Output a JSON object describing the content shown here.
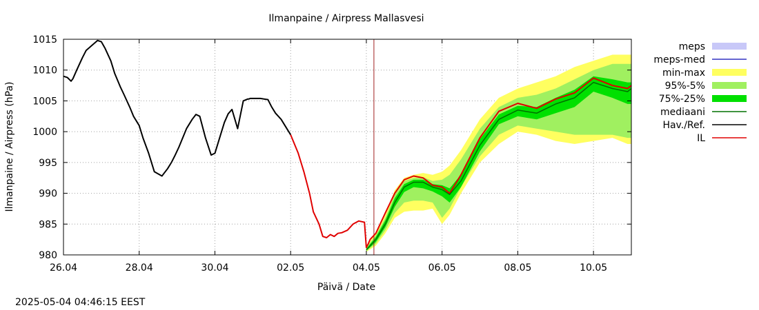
{
  "timestamp": "2025-05-04 04:46:15 EEST",
  "chart_data": {
    "type": "line",
    "title": "Ilmanpaine / Airpress Mallasvesi",
    "xlabel": "Päivä / Date",
    "ylabel": "Ilmanpaine / Airpress (hPa)",
    "x_unit": "days since 26.04 00:00",
    "xlim": [
      0,
      15
    ],
    "ylim": [
      980,
      1015
    ],
    "yticks": [
      980,
      985,
      990,
      995,
      1000,
      1005,
      1010,
      1015
    ],
    "xticks": [
      {
        "x": 0,
        "label": "26.04"
      },
      {
        "x": 2,
        "label": "28.04"
      },
      {
        "x": 4,
        "label": "30.04"
      },
      {
        "x": 6,
        "label": "02.05"
      },
      {
        "x": 8,
        "label": "04.05"
      },
      {
        "x": 10,
        "label": "06.05"
      },
      {
        "x": 12,
        "label": "08.05"
      },
      {
        "x": 14,
        "label": "10.05"
      }
    ],
    "grid": true,
    "forecast_line_x": 8.2,
    "legend_position": "right",
    "colors": {
      "meps": "#c8c8f8",
      "meps_med": "#3030c0",
      "minmax": "#ffff60",
      "p95_5": "#a0f060",
      "p75_25": "#00e000",
      "mediaani": "#007000",
      "obs": "#000000",
      "il": "#e00000",
      "now_line": "#a02020"
    },
    "legend": [
      {
        "key": "meps",
        "label": "meps",
        "style": "box"
      },
      {
        "key": "meps_med",
        "label": "meps-med",
        "style": "line"
      },
      {
        "key": "minmax",
        "label": "min-max",
        "style": "box"
      },
      {
        "key": "p95_5",
        "label": "95%-5%",
        "style": "box"
      },
      {
        "key": "p75_25",
        "label": "75%-25%",
        "style": "box"
      },
      {
        "key": "mediaani",
        "label": "mediaani",
        "style": "line"
      },
      {
        "key": "obs",
        "label": "Hav./Ref.",
        "style": "line"
      },
      {
        "key": "il",
        "label": "IL",
        "style": "line"
      }
    ],
    "series": [
      {
        "name": "Hav./Ref.",
        "x": [
          0,
          0.1,
          0.2,
          0.25,
          0.35,
          0.5,
          0.6,
          0.75,
          0.9,
          1.0,
          1.1,
          1.25,
          1.35,
          1.5,
          1.6,
          1.75,
          1.85,
          2.0,
          2.1,
          2.25,
          2.4,
          2.6,
          2.75,
          2.85,
          2.95,
          3.05,
          3.25,
          3.4,
          3.5,
          3.6,
          3.75,
          3.9,
          4.0,
          4.15,
          4.25,
          4.35,
          4.45,
          4.6,
          4.75,
          4.87,
          4.9,
          4.93,
          5.0,
          5.2,
          5.4,
          5.5,
          5.6,
          5.75,
          5.9,
          6.0
        ],
        "values": [
          1009.0,
          1008.8,
          1008.2,
          1008.6,
          1010.0,
          1012.0,
          1013.2,
          1014.0,
          1014.8,
          1014.6,
          1013.5,
          1011.5,
          1009.5,
          1007.3,
          1006.0,
          1004.0,
          1002.5,
          1001.0,
          999.0,
          996.5,
          993.5,
          992.8,
          994.0,
          995.0,
          996.2,
          997.5,
          1000.5,
          1002.0,
          1002.8,
          1002.5,
          999.0,
          996.2,
          996.5,
          999.5,
          1001.5,
          1002.9,
          1003.6,
          1000.5,
          1005.0,
          1005.3,
          1005.3,
          1005.4,
          1005.4,
          1005.4,
          1005.2,
          1004.0,
          1003.0,
          1002.0,
          1000.5,
          999.5
        ]
      },
      {
        "name": "IL",
        "x": [
          6.0,
          6.2,
          6.35,
          6.5,
          6.6,
          6.75,
          6.85,
          6.95,
          7.05,
          7.15,
          7.25,
          7.35,
          7.5,
          7.65,
          7.8,
          7.95,
          8.0,
          8.05,
          8.1,
          8.25,
          8.5,
          8.75,
          9.0,
          9.25,
          9.5,
          9.75,
          10.0,
          10.2,
          10.5,
          11.0,
          11.5,
          12.0,
          12.5,
          13.0,
          13.5,
          14.0,
          14.5,
          14.9,
          15.0
        ],
        "values": [
          999.5,
          996.5,
          993.5,
          990.0,
          987.0,
          985.0,
          983.0,
          982.8,
          983.3,
          983.0,
          983.5,
          983.6,
          984.0,
          985.0,
          985.5,
          985.3,
          981.2,
          981.8,
          982.5,
          983.5,
          986.8,
          990.0,
          992.2,
          992.8,
          992.5,
          991.3,
          991.0,
          990.0,
          993.0,
          999.0,
          1003.3,
          1004.6,
          1003.8,
          1005.3,
          1006.3,
          1008.7,
          1007.5,
          1007.0,
          1007.5
        ]
      },
      {
        "name": "mediaani",
        "x": [
          8.0,
          8.25,
          8.5,
          8.75,
          9.0,
          9.25,
          9.5,
          9.75,
          10.0,
          10.2,
          10.5,
          11.0,
          11.5,
          12.0,
          12.5,
          13.0,
          13.5,
          14.0,
          14.5,
          14.9,
          15.0
        ],
        "values": [
          980.8,
          982.5,
          985.0,
          988.5,
          991.0,
          991.8,
          991.8,
          991.0,
          990.6,
          989.8,
          992.0,
          997.8,
          1002.0,
          1003.5,
          1003.0,
          1004.5,
          1005.5,
          1008.0,
          1007.0,
          1006.5,
          1007.0
        ]
      }
    ],
    "bands": [
      {
        "name": "min-max",
        "x": [
          8.0,
          8.25,
          8.5,
          8.75,
          9.0,
          9.25,
          9.5,
          9.75,
          10.0,
          10.2,
          10.5,
          11.0,
          11.5,
          12.0,
          12.5,
          13.0,
          13.5,
          14.0,
          14.5,
          14.9,
          15.0
        ],
        "upper": [
          981.5,
          983.5,
          986.5,
          990.5,
          992.5,
          993.0,
          993.3,
          993.0,
          993.5,
          994.5,
          997.0,
          1002.0,
          1005.5,
          1007.0,
          1008.0,
          1009.0,
          1010.5,
          1011.5,
          1012.5,
          1012.5,
          1012.5
        ],
        "lower": [
          980.5,
          981.5,
          983.5,
          986.0,
          987.0,
          987.2,
          987.2,
          987.5,
          985.0,
          986.5,
          990.0,
          995.0,
          998.0,
          1000.0,
          999.5,
          998.5,
          998.0,
          998.5,
          999.0,
          998.0,
          998.0
        ]
      },
      {
        "name": "95%-5%",
        "x": [
          8.0,
          8.25,
          8.5,
          8.75,
          9.0,
          9.25,
          9.5,
          9.75,
          10.0,
          10.2,
          10.5,
          11.0,
          11.5,
          12.0,
          12.5,
          13.0,
          13.5,
          14.0,
          14.5,
          14.9,
          15.0
        ],
        "upper": [
          981.2,
          983.2,
          986.0,
          989.8,
          992.0,
          992.5,
          992.6,
          992.0,
          992.2,
          993.0,
          995.5,
          1000.5,
          1004.0,
          1005.5,
          1006.0,
          1007.0,
          1008.5,
          1010.0,
          1011.0,
          1011.0,
          1011.0
        ],
        "lower": [
          980.6,
          981.8,
          984.0,
          986.8,
          988.5,
          988.8,
          988.8,
          988.5,
          986.0,
          987.5,
          991.0,
          996.0,
          999.5,
          1001.0,
          1000.5,
          1000.0,
          999.5,
          999.5,
          999.5,
          999.0,
          999.0
        ]
      },
      {
        "name": "75%-25%",
        "x": [
          8.0,
          8.25,
          8.5,
          8.75,
          9.0,
          9.25,
          9.5,
          9.75,
          10.0,
          10.2,
          10.5,
          11.0,
          11.5,
          12.0,
          12.5,
          13.0,
          13.5,
          14.0,
          14.5,
          14.9,
          15.0
        ],
        "upper": [
          981.0,
          982.9,
          985.6,
          989.2,
          991.5,
          992.2,
          992.2,
          991.5,
          991.3,
          990.8,
          993.0,
          998.8,
          1002.8,
          1004.2,
          1004.0,
          1005.5,
          1006.8,
          1009.0,
          1008.5,
          1008.0,
          1008.0
        ],
        "lower": [
          980.7,
          982.1,
          984.5,
          987.8,
          990.2,
          991.0,
          990.8,
          990.3,
          989.5,
          988.5,
          991.0,
          996.8,
          1001.2,
          1002.5,
          1002.0,
          1003.0,
          1004.0,
          1006.5,
          1005.5,
          1004.5,
          1004.5
        ]
      }
    ]
  }
}
